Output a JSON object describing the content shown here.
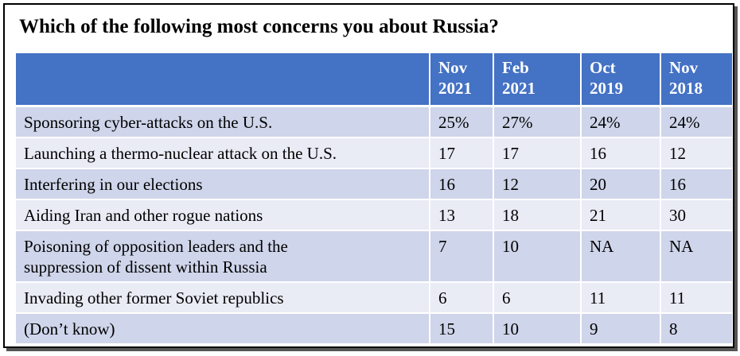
{
  "title": "Which of the following most concerns you about Russia?",
  "table": {
    "headers": [
      {
        "line1": "",
        "line2": ""
      },
      {
        "line1": "Nov",
        "line2": "2021"
      },
      {
        "line1": "Feb",
        "line2": "2021"
      },
      {
        "line1": "Oct",
        "line2": "2019"
      },
      {
        "line1": "Nov",
        "line2": "2018"
      }
    ],
    "rows": [
      {
        "label": "Sponsoring cyber-attacks on the U.S.",
        "values": [
          "25%",
          "27%",
          "24%",
          "24%"
        ]
      },
      {
        "label": "Launching a thermo-nuclear attack on the U.S.",
        "values": [
          "17",
          "17",
          "16",
          "12"
        ]
      },
      {
        "label": "Interfering in our elections",
        "values": [
          "16",
          "12",
          "20",
          "16"
        ]
      },
      {
        "label": "Aiding Iran and other rogue nations",
        "values": [
          "13",
          "18",
          "21",
          "30"
        ]
      },
      {
        "label": "Poisoning of opposition leaders and the",
        "label2": "suppression of dissent within Russia",
        "values": [
          "7",
          "10",
          "NA",
          "NA"
        ]
      },
      {
        "label": "Invading other former Soviet republics",
        "values": [
          "6",
          "6",
          "11",
          "11"
        ]
      },
      {
        "label": "(Don’t know)",
        "values": [
          "15",
          "10",
          "9",
          "8"
        ]
      }
    ]
  }
}
